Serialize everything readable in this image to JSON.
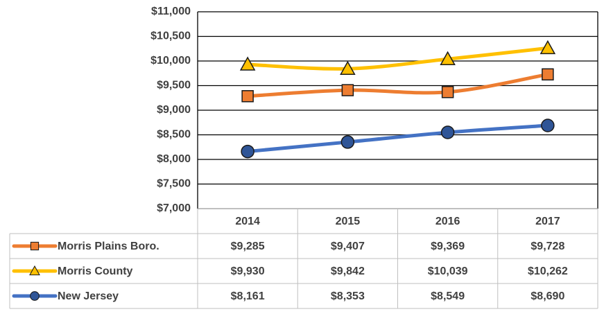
{
  "chart_data": {
    "type": "line",
    "categories": [
      "2014",
      "2015",
      "2016",
      "2017"
    ],
    "series": [
      {
        "name": "Morris Plains Boro.",
        "color": "#ED7D31",
        "marker": "square",
        "values": [
          9285,
          9407,
          9369,
          9728
        ],
        "value_labels": [
          "$9,285",
          "$9,407",
          "$9,369",
          "$9,728"
        ]
      },
      {
        "name": "Morris County",
        "color": "#FFC000",
        "marker": "triangle",
        "values": [
          9930,
          9842,
          10039,
          10262
        ],
        "value_labels": [
          "$9,930",
          "$9,842",
          "$10,039",
          "$10,262"
        ]
      },
      {
        "name": "New Jersey",
        "color": "#4472C4",
        "marker": "circle",
        "values": [
          8161,
          8353,
          8549,
          8690
        ],
        "value_labels": [
          "$8,161",
          "$8,353",
          "$8,549",
          "$8,690"
        ]
      }
    ],
    "ylim": [
      7000,
      11000
    ],
    "yticks": [
      {
        "value": 7000,
        "label": "$7,000"
      },
      {
        "value": 7500,
        "label": "$7,500"
      },
      {
        "value": 8000,
        "label": "$8,000"
      },
      {
        "value": 8500,
        "label": "$8,500"
      },
      {
        "value": 9000,
        "label": "$9,000"
      },
      {
        "value": 9500,
        "label": "$9,500"
      },
      {
        "value": 10000,
        "label": "$10,000"
      },
      {
        "value": 10500,
        "label": "$10,500"
      },
      {
        "value": 11000,
        "label": "$11,000"
      }
    ],
    "grid": true,
    "data_table": true
  }
}
